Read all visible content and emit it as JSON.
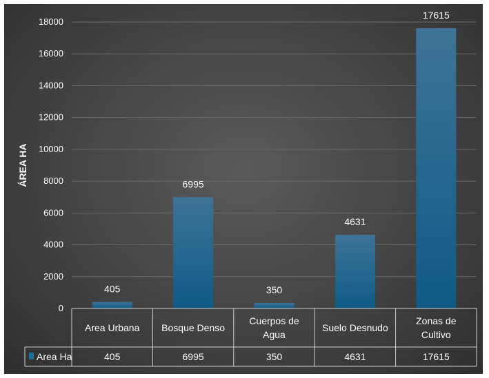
{
  "chart_data": {
    "type": "bar",
    "categories": [
      "Area Urbana",
      "Bosque Denso",
      "Cuerpos de Agua",
      "Suelo Desnudo",
      "Zonas de Cultivo"
    ],
    "category_lines": [
      [
        "Area Urbana"
      ],
      [
        "Bosque Denso"
      ],
      [
        "Cuerpos de",
        "Agua"
      ],
      [
        "Suelo Desnudo"
      ],
      [
        "Zonas de",
        "Cultivo"
      ]
    ],
    "series": [
      {
        "name": "Area Ha",
        "values": [
          405,
          6995,
          350,
          4631,
          17615
        ]
      }
    ],
    "title": "",
    "xlabel": "",
    "ylabel": "ÁREA HA",
    "ylim": [
      0,
      18000
    ],
    "yticks": [
      0,
      2000,
      4000,
      6000,
      8000,
      10000,
      12000,
      14000,
      16000,
      18000
    ],
    "data_labels": true,
    "data_table": true,
    "grid": true,
    "colors": {
      "bar_top": "#3f7397",
      "bar_bottom": "#0f5a86",
      "background": "#474747",
      "gridline": "#6a6a6a",
      "table_line": "#d0d0d0",
      "legend_key": "#1a6fa0"
    }
  }
}
